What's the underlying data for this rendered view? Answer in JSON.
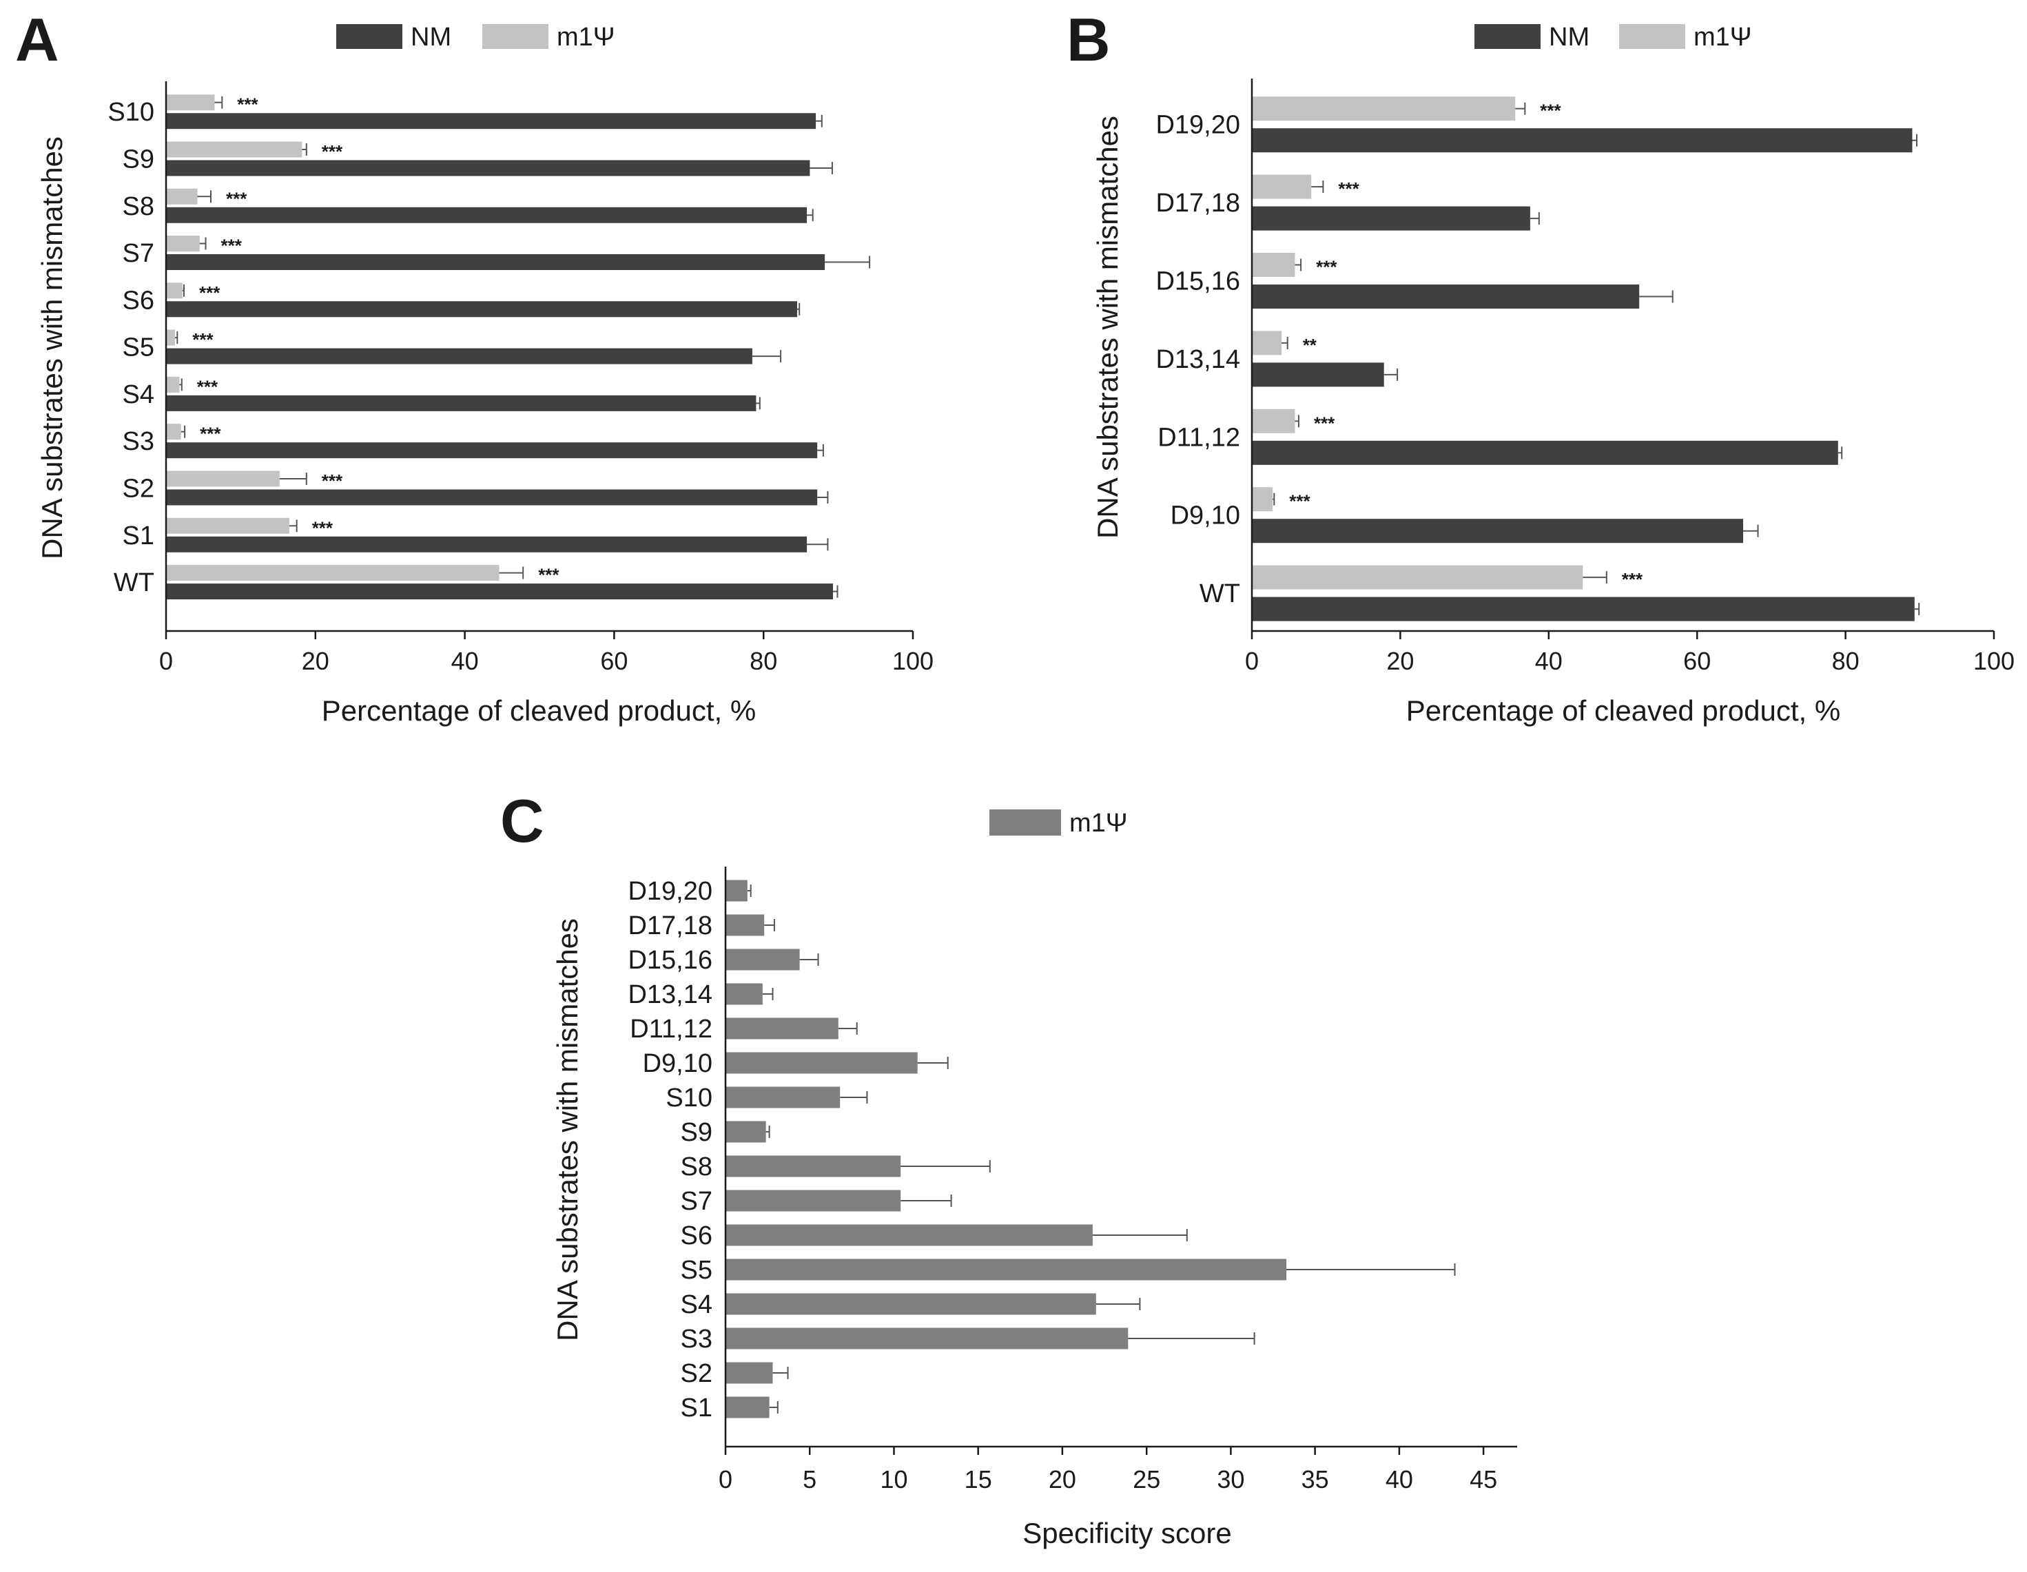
{
  "figure": {
    "colors": {
      "nm": "#404040",
      "m1psi": "#c3c3c3",
      "score": "#7f7f7f",
      "axis": "#1a1a1a",
      "error": "#555555"
    }
  },
  "chart_data": [
    {
      "panel": "A",
      "type": "bar",
      "orientation": "horizontal",
      "legend": [
        "NM",
        "m1Ψ"
      ],
      "ylabel": "DNA substrates with mismatches",
      "xlabel": "Percentage of cleaved product, %",
      "xlim": [
        0,
        100
      ],
      "xticks": [
        "0",
        "20",
        "40",
        "60",
        "80",
        "100"
      ],
      "categories": [
        "S10",
        "S9",
        "S8",
        "S7",
        "S6",
        "S5",
        "S4",
        "S3",
        "S2",
        "S1",
        "WT"
      ],
      "series": [
        {
          "name": "m1Ψ",
          "values": [
            6.5,
            18.2,
            4.2,
            4.5,
            2.2,
            1.2,
            1.8,
            2.0,
            15.2,
            16.5,
            44.6
          ],
          "errors": [
            1.0,
            0.6,
            1.8,
            0.8,
            0.2,
            0.3,
            0.3,
            0.5,
            3.6,
            1.0,
            3.2
          ]
        },
        {
          "name": "NM",
          "values": [
            87.0,
            86.2,
            85.8,
            88.2,
            84.5,
            78.5,
            79.0,
            87.2,
            87.2,
            85.8,
            89.3
          ],
          "errors": [
            0.8,
            3.0,
            0.8,
            6.0,
            0.3,
            3.8,
            0.5,
            0.8,
            1.4,
            2.8,
            0.6
          ]
        }
      ],
      "significance": [
        "***",
        "***",
        "***",
        "***",
        "***",
        "***",
        "***",
        "***",
        "***",
        "***",
        "***"
      ]
    },
    {
      "panel": "B",
      "type": "bar",
      "orientation": "horizontal",
      "legend": [
        "NM",
        "m1Ψ"
      ],
      "ylabel": "DNA substrates with mismatches",
      "xlabel": "Percentage of cleaved product, %",
      "xlim": [
        0,
        100
      ],
      "xticks": [
        "0",
        "20",
        "40",
        "60",
        "80",
        "100"
      ],
      "categories": [
        "D19,20",
        "D17,18",
        "D15,16",
        "D13,14",
        "D11,12",
        "D9,10",
        "WT"
      ],
      "series": [
        {
          "name": "m1Ψ",
          "values": [
            35.5,
            8.0,
            5.8,
            4.0,
            5.8,
            2.8,
            44.6
          ],
          "errors": [
            1.3,
            1.6,
            0.8,
            0.8,
            0.5,
            0.2,
            3.2
          ]
        },
        {
          "name": "NM",
          "values": [
            89.0,
            37.5,
            52.2,
            17.8,
            79.0,
            66.2,
            89.3
          ],
          "errors": [
            0.6,
            1.2,
            4.5,
            1.8,
            0.5,
            2.0,
            0.6
          ]
        }
      ],
      "significance": [
        "***",
        "***",
        "***",
        "**",
        "***",
        "***",
        "***"
      ]
    },
    {
      "panel": "C",
      "type": "bar",
      "orientation": "horizontal",
      "legend": [
        "m1Ψ"
      ],
      "ylabel": "DNA substrates with mismatches",
      "xlabel": "Specificity score",
      "xlim": [
        0,
        47
      ],
      "xticks": [
        "0",
        "5",
        "10",
        "15",
        "20",
        "25",
        "30",
        "35",
        "40",
        "45"
      ],
      "categories": [
        "D19,20",
        "D17,18",
        "D15,16",
        "D13,14",
        "D11,12",
        "D9,10",
        "S10",
        "S9",
        "S8",
        "S7",
        "S6",
        "S5",
        "S4",
        "S3",
        "S2",
        "S1"
      ],
      "series": [
        {
          "name": "m1Ψ",
          "values": [
            1.3,
            2.3,
            4.4,
            2.2,
            6.7,
            11.4,
            6.8,
            2.4,
            10.4,
            10.4,
            21.8,
            33.3,
            22.0,
            23.9,
            2.8,
            2.6
          ],
          "errors": [
            0.2,
            0.6,
            1.1,
            0.6,
            1.1,
            1.8,
            1.6,
            0.2,
            5.3,
            3.0,
            5.6,
            10.0,
            2.6,
            7.5,
            0.9,
            0.5
          ]
        }
      ]
    }
  ]
}
